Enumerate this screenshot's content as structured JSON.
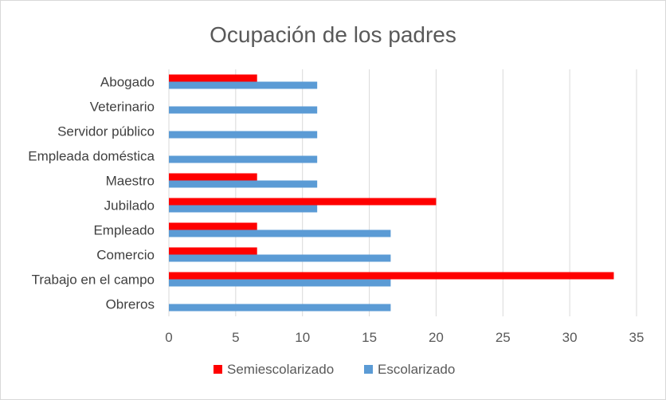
{
  "chart_data": {
    "type": "bar",
    "orientation": "horizontal",
    "title": "Ocupación de los padres",
    "xlabel": "",
    "ylabel": "",
    "categories": [
      "Abogado",
      "Veterinario",
      "Servidor público",
      "Empleada doméstica",
      "Maestro",
      "Jubilado",
      "Empleado",
      "Comercio",
      "Trabajo en el campo",
      "Obreros"
    ],
    "series": [
      {
        "name": "Semiescolarizado",
        "color": "#ff0000",
        "values": [
          6.6,
          0,
          0,
          0,
          6.6,
          20,
          6.6,
          6.6,
          33.3,
          0
        ]
      },
      {
        "name": "Escolarizado",
        "color": "#5b9bd5",
        "values": [
          11.1,
          11.1,
          11.1,
          11.1,
          11.1,
          11.1,
          16.6,
          16.6,
          16.6,
          16.6
        ]
      }
    ],
    "xlim": [
      0,
      35
    ],
    "xticks": [
      0,
      5,
      10,
      15,
      20,
      25,
      30,
      35
    ],
    "grid": true,
    "legend_position": "bottom"
  }
}
